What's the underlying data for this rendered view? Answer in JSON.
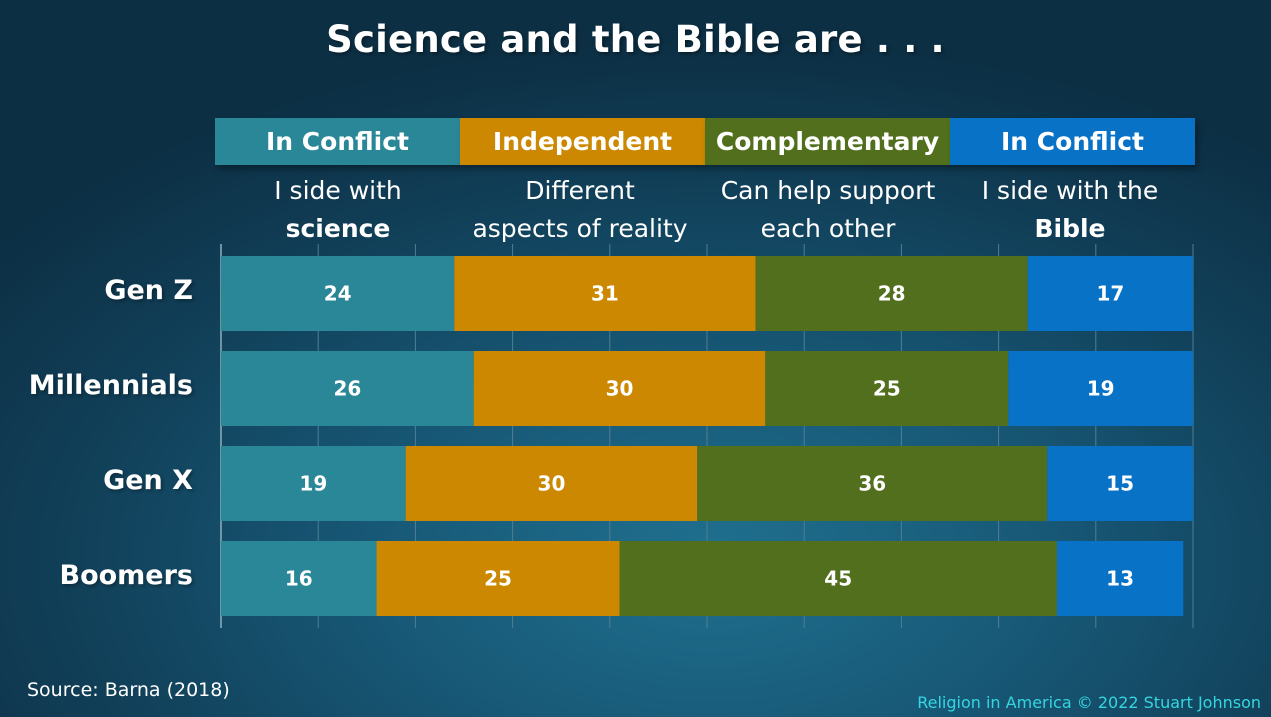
{
  "title": "Science and the Bible are . . .",
  "categories": [
    {
      "label": "In Conflict",
      "line1": "I side with",
      "line2": "science",
      "color": "#2a8797"
    },
    {
      "label": "Independent",
      "line1": "Different",
      "line2": "aspects of reality",
      "color": "#cc8800"
    },
    {
      "label": "Complementary",
      "line1": "Can help support",
      "line2": "each other",
      "color": "#526f1e"
    },
    {
      "label": "In Conflict",
      "line1": "I side with the",
      "line2": "Bible",
      "color": "#0872c6"
    }
  ],
  "chart_data": {
    "type": "bar",
    "orientation": "horizontal",
    "stacked": true,
    "categories": [
      "Gen Z",
      "Millennials",
      "Gen X",
      "Boomers"
    ],
    "series": [
      {
        "name": "In Conflict (I side with science)",
        "values": [
          24,
          26,
          19,
          16
        ],
        "color": "#2a8797"
      },
      {
        "name": "Independent (Different aspects of reality)",
        "values": [
          31,
          30,
          30,
          25
        ],
        "color": "#cc8800"
      },
      {
        "name": "Complementary (Can help support each other)",
        "values": [
          28,
          25,
          36,
          45
        ],
        "color": "#526f1e"
      },
      {
        "name": "In Conflict (I side with the Bible)",
        "values": [
          17,
          19,
          15,
          13
        ],
        "color": "#0872c6"
      }
    ],
    "xlim": [
      0,
      100
    ],
    "grid": true
  },
  "footer": {
    "source": "Source: Barna (2018)",
    "credit": "Religion in America © 2022 Stuart Johnson"
  }
}
